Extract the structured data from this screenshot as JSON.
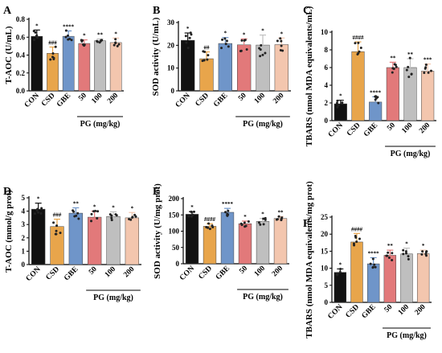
{
  "chart_data": [
    {
      "panel": "A",
      "type": "bar",
      "ylabel": "T-AOC (U/mL)",
      "ylim": [
        0,
        0.8
      ],
      "yticks": [
        0.0,
        0.2,
        0.4,
        0.6,
        0.8
      ],
      "ytick_labels": [
        "0.0",
        "0.2",
        "0.4",
        "0.6",
        "0.8"
      ],
      "categories": [
        "CON",
        "CSD",
        "GBE",
        "50",
        "100",
        "200"
      ],
      "group_label": "PG (mg/kg)",
      "values": [
        0.61,
        0.42,
        0.61,
        0.53,
        0.56,
        0.54
      ],
      "errors": [
        0.07,
        0.07,
        0.06,
        0.04,
        0.02,
        0.05
      ],
      "annotations": [
        "*",
        "###",
        "****",
        "*",
        "**",
        "*"
      ]
    },
    {
      "panel": "B",
      "type": "bar",
      "ylabel": "SOD activity (U/mL)",
      "ylim": [
        0,
        30
      ],
      "yticks": [
        0,
        10,
        20,
        30
      ],
      "ytick_labels": [
        "0",
        "10",
        "20",
        "30"
      ],
      "categories": [
        "CON",
        "CSD",
        "GBE",
        "50",
        "100",
        "200"
      ],
      "group_label": "PG (mg/kg)",
      "values": [
        22.2,
        14.1,
        20.8,
        20.2,
        20.1,
        20.3
      ],
      "errors": [
        3.2,
        3.0,
        2.6,
        2.6,
        4.4,
        2.9
      ],
      "annotations": [
        "*",
        "##",
        "*",
        "*",
        "*",
        "*"
      ]
    },
    {
      "panel": "C",
      "type": "bar",
      "ylabel": "TBARS (nmol MDA equivalents/mL)",
      "ylim": [
        0,
        10
      ],
      "yticks": [
        0,
        2,
        4,
        6,
        8,
        10
      ],
      "ytick_labels": [
        "0",
        "2",
        "4",
        "6",
        "8",
        "10"
      ],
      "categories": [
        "CON",
        "CSD",
        "GBE",
        "50",
        "100",
        "200"
      ],
      "group_label": "PG (mg/kg)",
      "values": [
        1.9,
        7.8,
        2.1,
        6.0,
        6.0,
        5.6
      ],
      "errors": [
        0.4,
        1.1,
        0.6,
        0.6,
        1.0,
        0.8
      ],
      "annotations": [
        "*",
        "####",
        "****",
        "**",
        "**",
        "***"
      ]
    },
    {
      "panel": "D",
      "type": "bar",
      "ylabel": "T-AOC (mmol/g prot)",
      "ylim": [
        0,
        5
      ],
      "yticks": [
        0,
        1,
        2,
        3,
        4,
        5
      ],
      "ytick_labels": [
        "0",
        "1",
        "2",
        "3",
        "4",
        "5"
      ],
      "categories": [
        "CON",
        "CSD",
        "GBE",
        "50",
        "100",
        "200"
      ],
      "group_label": "PG (mg/kg)",
      "values": [
        4.15,
        2.85,
        3.85,
        3.55,
        3.6,
        3.5
      ],
      "errors": [
        0.45,
        0.55,
        0.4,
        0.45,
        0.35,
        0.4
      ],
      "annotations": [
        "*",
        "###",
        "**",
        "*",
        "*",
        "*"
      ]
    },
    {
      "panel": "E",
      "type": "bar",
      "ylabel": "SOD activity (U/mg prot)",
      "ylim": [
        0,
        200
      ],
      "yticks": [
        0,
        50,
        100,
        150,
        200
      ],
      "ytick_labels": [
        "0",
        "50",
        "100",
        "150",
        "200"
      ],
      "categories": [
        "CON",
        "CSD",
        "GBE",
        "50",
        "100",
        "200"
      ],
      "group_label": "PG (mg/kg)",
      "values": [
        152,
        115,
        158,
        123,
        130,
        139
      ],
      "errors": [
        8,
        8,
        12,
        8,
        9,
        6
      ],
      "annotations": [
        "*",
        "####",
        "****",
        "*",
        "*",
        "**"
      ]
    },
    {
      "panel": "F",
      "type": "bar",
      "ylabel": "TBARS (nmol MDA equivalents/mg prot)",
      "ylim": [
        0,
        25
      ],
      "yticks": [
        0,
        5,
        10,
        15,
        20,
        25
      ],
      "ytick_labels": [
        "0",
        "5",
        "10",
        "15",
        "20",
        "25"
      ],
      "categories": [
        "CON",
        "CSD",
        "GBE",
        "50",
        "100",
        "200"
      ],
      "group_label": "PG (mg/kg)",
      "values": [
        8.8,
        17.7,
        11.3,
        13.8,
        14.2,
        14.3
      ],
      "errors": [
        1.0,
        2.5,
        1.8,
        1.5,
        1.7,
        1.0
      ],
      "annotations": [
        "*",
        "####",
        "****",
        "**",
        "*",
        "*"
      ]
    }
  ],
  "colors": {
    "bars": [
      "#111111",
      "#e8a54b",
      "#6f95c9",
      "#e2797a",
      "#bfbfbf",
      "#f3c6ae"
    ],
    "dots": "#222222",
    "axis": "#000000"
  }
}
